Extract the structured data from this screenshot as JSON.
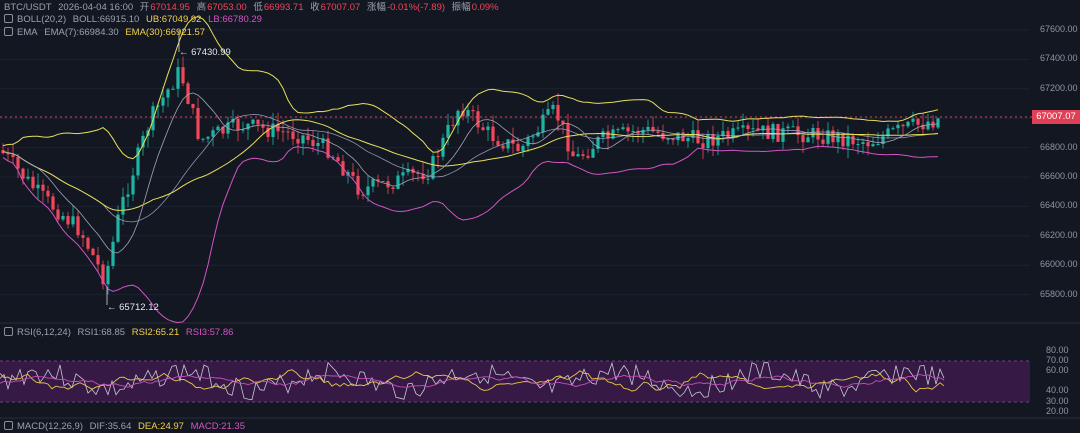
{
  "header": {
    "symbol": "BTC/USDT",
    "datetime": "2026-04-04 16:00",
    "open_label": "开",
    "open": "67014.95",
    "high_label": "高",
    "high": "67053.00",
    "low_label": "低",
    "low": "66993.71",
    "close_label": "收",
    "close": "67007.07",
    "change_label": "涨幅",
    "change": "-0.01%(-7.89)",
    "amp_label": "振幅",
    "amp": "0.09%"
  },
  "boll": {
    "title": "BOLL(20,2)",
    "mid": "BOLL:66915.10",
    "ub": "UB:67049.92",
    "lb": "LB:66780.29"
  },
  "ema": {
    "title": "EMA",
    "ema7": "EMA(7):66984.30",
    "ema30": "EMA(30):66921.57"
  },
  "annotations": {
    "high": "67430.99",
    "low": "65712.12"
  },
  "price_label": "67007.07",
  "price_axis": [
    "67600.00",
    "67400.00",
    "67200.00",
    "67000.00",
    "66800.00",
    "66600.00",
    "66400.00",
    "66200.00",
    "66000.00",
    "65800.00"
  ],
  "rsi": {
    "title": "RSI(6,12,24)",
    "rsi1": "RSI1:68.85",
    "rsi2": "RSI2:65.21",
    "rsi3": "RSI3:57.86"
  },
  "rsi_axis": [
    "80.00",
    "70.00",
    "60.00",
    "40.00",
    "30.00",
    "20.00"
  ],
  "macd": {
    "title": "MACD(12,26,9)",
    "dif": "DIF:35.64",
    "dea": "DEA:24.97",
    "macd": "MACD:21.35"
  },
  "colors": {
    "up": "#1fb5a5",
    "down": "#f0475a",
    "boll": "#e8e05a",
    "lb": "#d454c4",
    "ema7": "#9fa6b6",
    "ema30": "#e8e05a",
    "rsi_zone": "#3d1a4a"
  }
}
